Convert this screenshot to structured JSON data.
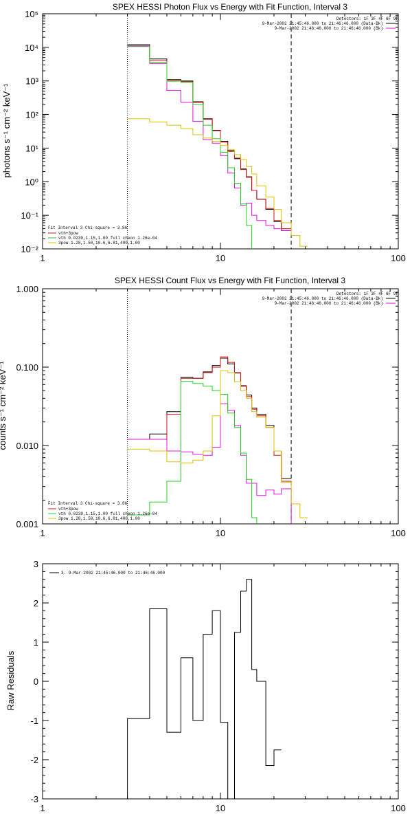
{
  "chart_data": [
    {
      "type": "line",
      "title": "SPEX HESSI Photon Flux vs Energy with Fit Function, Interval 3",
      "ylabel": "photons s⁻¹ cm⁻² keV⁻¹",
      "xscale": "log",
      "yscale": "log",
      "xlim": [
        1,
        100
      ],
      "ylim": [
        0.01,
        100000
      ],
      "xticks": [
        "1",
        "10",
        "100"
      ],
      "yticks": [
        "10⁻²",
        "10⁻¹",
        "10⁰",
        "10¹",
        "10²",
        "10³",
        "10⁴",
        "10⁵"
      ],
      "top_right_info": {
        "line1": "Detectors: 1F 3F 4F 6F 9F",
        "line2": "9-Mar-2002 21:45:46.000 to 21:46:46.000 (Data-Bk)",
        "line3": "9-Mar-2002 21:46:46.000 to 21:46:46.000 (Bk)"
      },
      "fit_info": {
        "line1": "Fit Interval 3   Chi-square = 3.86",
        "line2": "vth+3pow",
        "line3": "vth 0.0239,1.15,1.00  full cheon 1.26e-04",
        "line4": "3pow 1.28,1.50,10.6,6.81,400,1.00"
      },
      "vlines": [
        {
          "x": 3.0,
          "style": "dotted"
        },
        {
          "x": 25.0,
          "style": "dashed"
        }
      ],
      "bin_edges": [
        3,
        4,
        5,
        6,
        7,
        8,
        9,
        10,
        11,
        12,
        13,
        14,
        15,
        16,
        18,
        20,
        22,
        25,
        28,
        31
      ],
      "series": [
        {
          "color": "#000000",
          "values": [
            12000,
            4500,
            1100,
            1000,
            240,
            75,
            34,
            16,
            8.5,
            5,
            2.4,
            1.4,
            0.55,
            0.3,
            0.15,
            0.065,
            0.035,
            null,
            null
          ]
        },
        {
          "color": "#d01010",
          "values": [
            11000,
            4000,
            1050,
            950,
            230,
            72,
            33,
            15,
            8,
            4.8,
            2.3,
            1.35,
            0.55,
            0.3,
            0.16,
            0.07,
            0.04,
            null,
            null
          ]
        },
        {
          "color": "#e010e0",
          "values": [
            11000,
            3300,
            520,
            230,
            63,
            18,
            14,
            6,
            1.8,
            0.65,
            0.2,
            0.23,
            0.1,
            0.07,
            0.05,
            0.04,
            0.035,
            null,
            null
          ]
        },
        {
          "color": "#20d020",
          "values": [
            10500,
            3600,
            980,
            900,
            200,
            48,
            19,
            7.5,
            2.6,
            0.9,
            0.22,
            0.05,
            0.008,
            null,
            null,
            null,
            null,
            null,
            null
          ]
        },
        {
          "color": "#e0c000",
          "values": [
            75,
            60,
            48,
            38,
            25,
            20,
            16,
            12,
            9,
            6.4,
            4.6,
            2.8,
            1.7,
            0.75,
            0.35,
            0.15,
            0.06,
            0.025,
            0.012
          ]
        }
      ]
    },
    {
      "type": "line",
      "title": "SPEX HESSI Count Flux vs Energy with Fit Function, Interval 3",
      "ylabel": "counts s⁻¹ cm⁻² keV⁻¹",
      "xscale": "log",
      "yscale": "log",
      "xlim": [
        1,
        100
      ],
      "ylim": [
        0.001,
        1.0
      ],
      "xticks": [
        "1",
        "10",
        "100"
      ],
      "yticks": [
        "0.001",
        "0.010",
        "0.100",
        "1.000"
      ],
      "top_right_info": {
        "line1": "Detectors: 1F 3F 4F 6F 9F",
        "line2": "9-Mar-2002 21:45:46.000 to 21:46:46.000 (Data-Bk)",
        "line3": "9-Mar-2002 21:46:46.000 to 21:46:46.000 (Bk)"
      },
      "fit_info": {
        "line1": "Fit Interval 3   Chi-square = 3.86",
        "line2": "vth+3pow",
        "line3": "vth 0.0239,1.15,1.00  full cheon 1.26e-04",
        "line4": "3pow 1.28,1.50,10.6,6.81,400,1.00"
      },
      "vlines": [
        {
          "x": 3.0,
          "style": "dotted"
        },
        {
          "x": 25.0,
          "style": "dashed"
        }
      ],
      "bin_edges": [
        3,
        4,
        5,
        6,
        7,
        8,
        9,
        10,
        11,
        12,
        13,
        14,
        15,
        16,
        18,
        20,
        22,
        25,
        28,
        31
      ],
      "series": [
        {
          "color": "#000000",
          "values": [
            0.012,
            0.014,
            0.027,
            0.074,
            0.072,
            0.087,
            0.105,
            0.13,
            0.11,
            0.084,
            0.058,
            0.044,
            0.03,
            0.025,
            0.018,
            0.0085,
            0.0038,
            null,
            null
          ]
        },
        {
          "color": "#d01010",
          "values": [
            0.012,
            0.012,
            0.025,
            0.072,
            0.072,
            0.085,
            0.1,
            0.135,
            0.115,
            0.085,
            0.057,
            0.042,
            0.029,
            0.024,
            0.017,
            0.0075,
            0.0035,
            null,
            null
          ]
        },
        {
          "color": "#e010e0",
          "values": [
            0.012,
            0.012,
            0.0085,
            0.0083,
            0.0077,
            0.0075,
            0.0095,
            0.034,
            0.028,
            0.018,
            0.0075,
            0.0033,
            0.0033,
            0.0023,
            0.0027,
            0.0024,
            0.0028,
            0.0008,
            null
          ]
        },
        {
          "color": "#20d020",
          "values": [
            0.0013,
            0.0019,
            0.0035,
            0.066,
            0.062,
            0.057,
            0.05,
            0.045,
            0.026,
            0.017,
            0.008,
            0.0037,
            0.0012,
            0.0006,
            null,
            null,
            null,
            null,
            null
          ]
        },
        {
          "color": "#e0c000",
          "values": [
            0.009,
            0.0085,
            0.0062,
            0.006,
            0.0065,
            0.0085,
            0.024,
            0.09,
            0.085,
            0.065,
            0.05,
            0.04,
            0.027,
            0.023,
            0.017,
            0.0085,
            0.0034,
            0.0018,
            0.0012
          ]
        }
      ]
    },
    {
      "type": "line",
      "title": "",
      "ylabel": "Raw Residuals",
      "xscale": "log",
      "xlim": [
        1,
        100
      ],
      "ylim": [
        -3,
        3
      ],
      "xticks": [
        "1",
        "10",
        "100"
      ],
      "yticks": [
        "-3",
        "-2",
        "-1",
        "0",
        "1",
        "2",
        "3"
      ],
      "legend_text": "3.  9-Mar-2002 21:45:46.000 to 21:46:46.000",
      "bin_edges": [
        3,
        4,
        5,
        6,
        7,
        8,
        9,
        10,
        11,
        12,
        13,
        14,
        15,
        16,
        18,
        20,
        22,
        25,
        28,
        31
      ],
      "series": [
        {
          "color": "#000000",
          "values": [
            -0.95,
            1.85,
            -1.3,
            0.6,
            -1.0,
            1.2,
            1.8,
            -1.05,
            -3.2,
            1.25,
            2.3,
            2.6,
            0.3,
            0.0,
            -2.15,
            -1.75,
            null,
            null,
            null
          ]
        }
      ]
    }
  ]
}
